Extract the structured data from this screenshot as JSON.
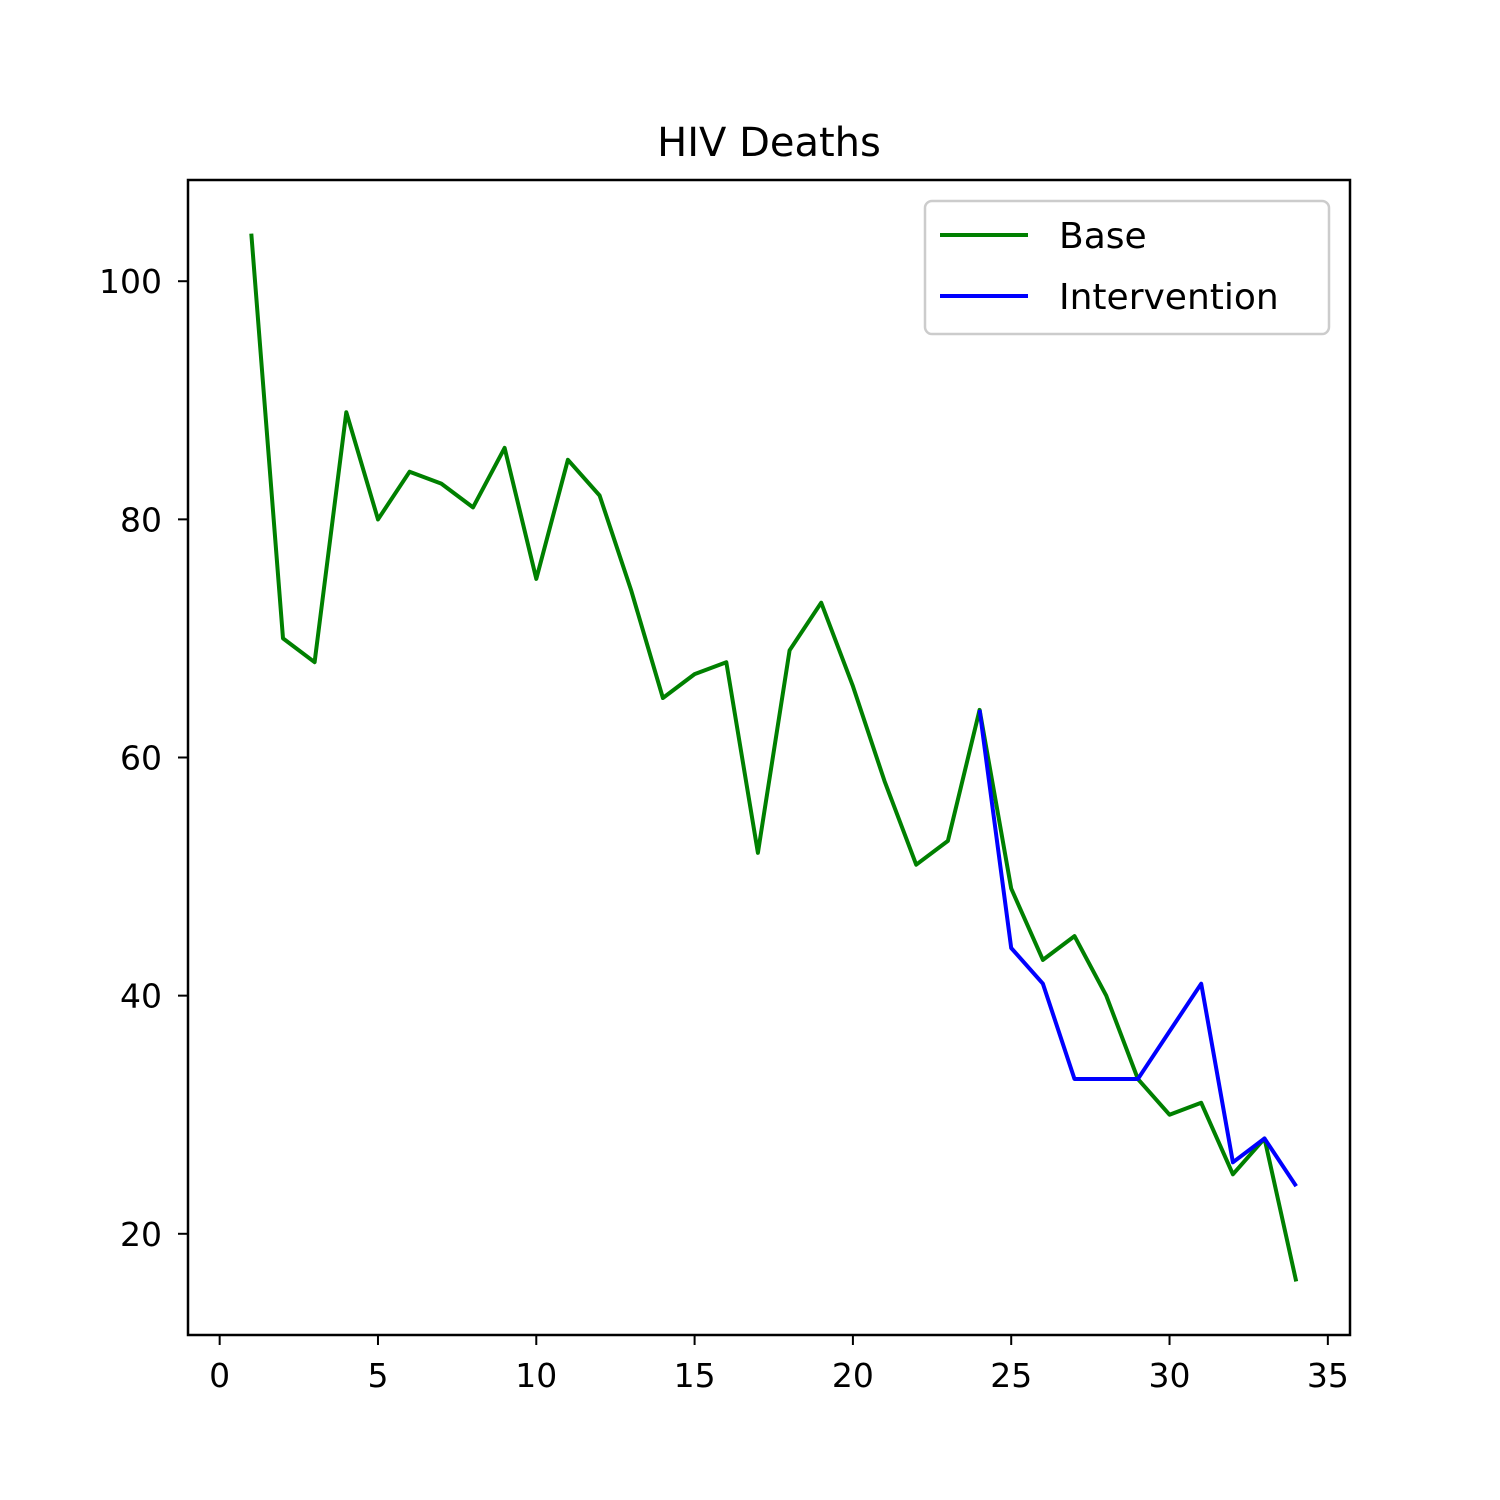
{
  "chart_data": {
    "type": "line",
    "title": "HIV Deaths",
    "xlabel": "",
    "ylabel": "",
    "xlim": [
      -1.0,
      35.7
    ],
    "ylim": [
      11.5,
      108.5
    ],
    "xticks": [
      0,
      5,
      10,
      15,
      20,
      25,
      30,
      35
    ],
    "yticks": [
      20,
      40,
      60,
      80,
      100
    ],
    "grid": false,
    "legend_position": "top-right",
    "series": [
      {
        "name": "Base",
        "color": "#008000",
        "x": [
          1,
          2,
          3,
          4,
          5,
          6,
          7,
          8,
          9,
          10,
          11,
          12,
          13,
          14,
          15,
          16,
          17,
          18,
          19,
          20,
          21,
          22,
          23,
          24,
          25,
          26,
          27,
          28,
          29,
          30,
          31,
          32,
          33,
          34
        ],
        "values": [
          104,
          70,
          68,
          89,
          80,
          84,
          83,
          81,
          86,
          75,
          85,
          82,
          74,
          65,
          67,
          68,
          52,
          69,
          73,
          66,
          58,
          51,
          53,
          64,
          49,
          43,
          45,
          40,
          33,
          30,
          31,
          25,
          28,
          16
        ]
      },
      {
        "name": "Intervention",
        "color": "#0000ff",
        "x": [
          24,
          25,
          26,
          27,
          28,
          29,
          30,
          31,
          32,
          33,
          34
        ],
        "values": [
          64,
          44,
          41,
          33,
          33,
          33,
          37,
          41,
          26,
          28,
          24
        ]
      }
    ]
  }
}
